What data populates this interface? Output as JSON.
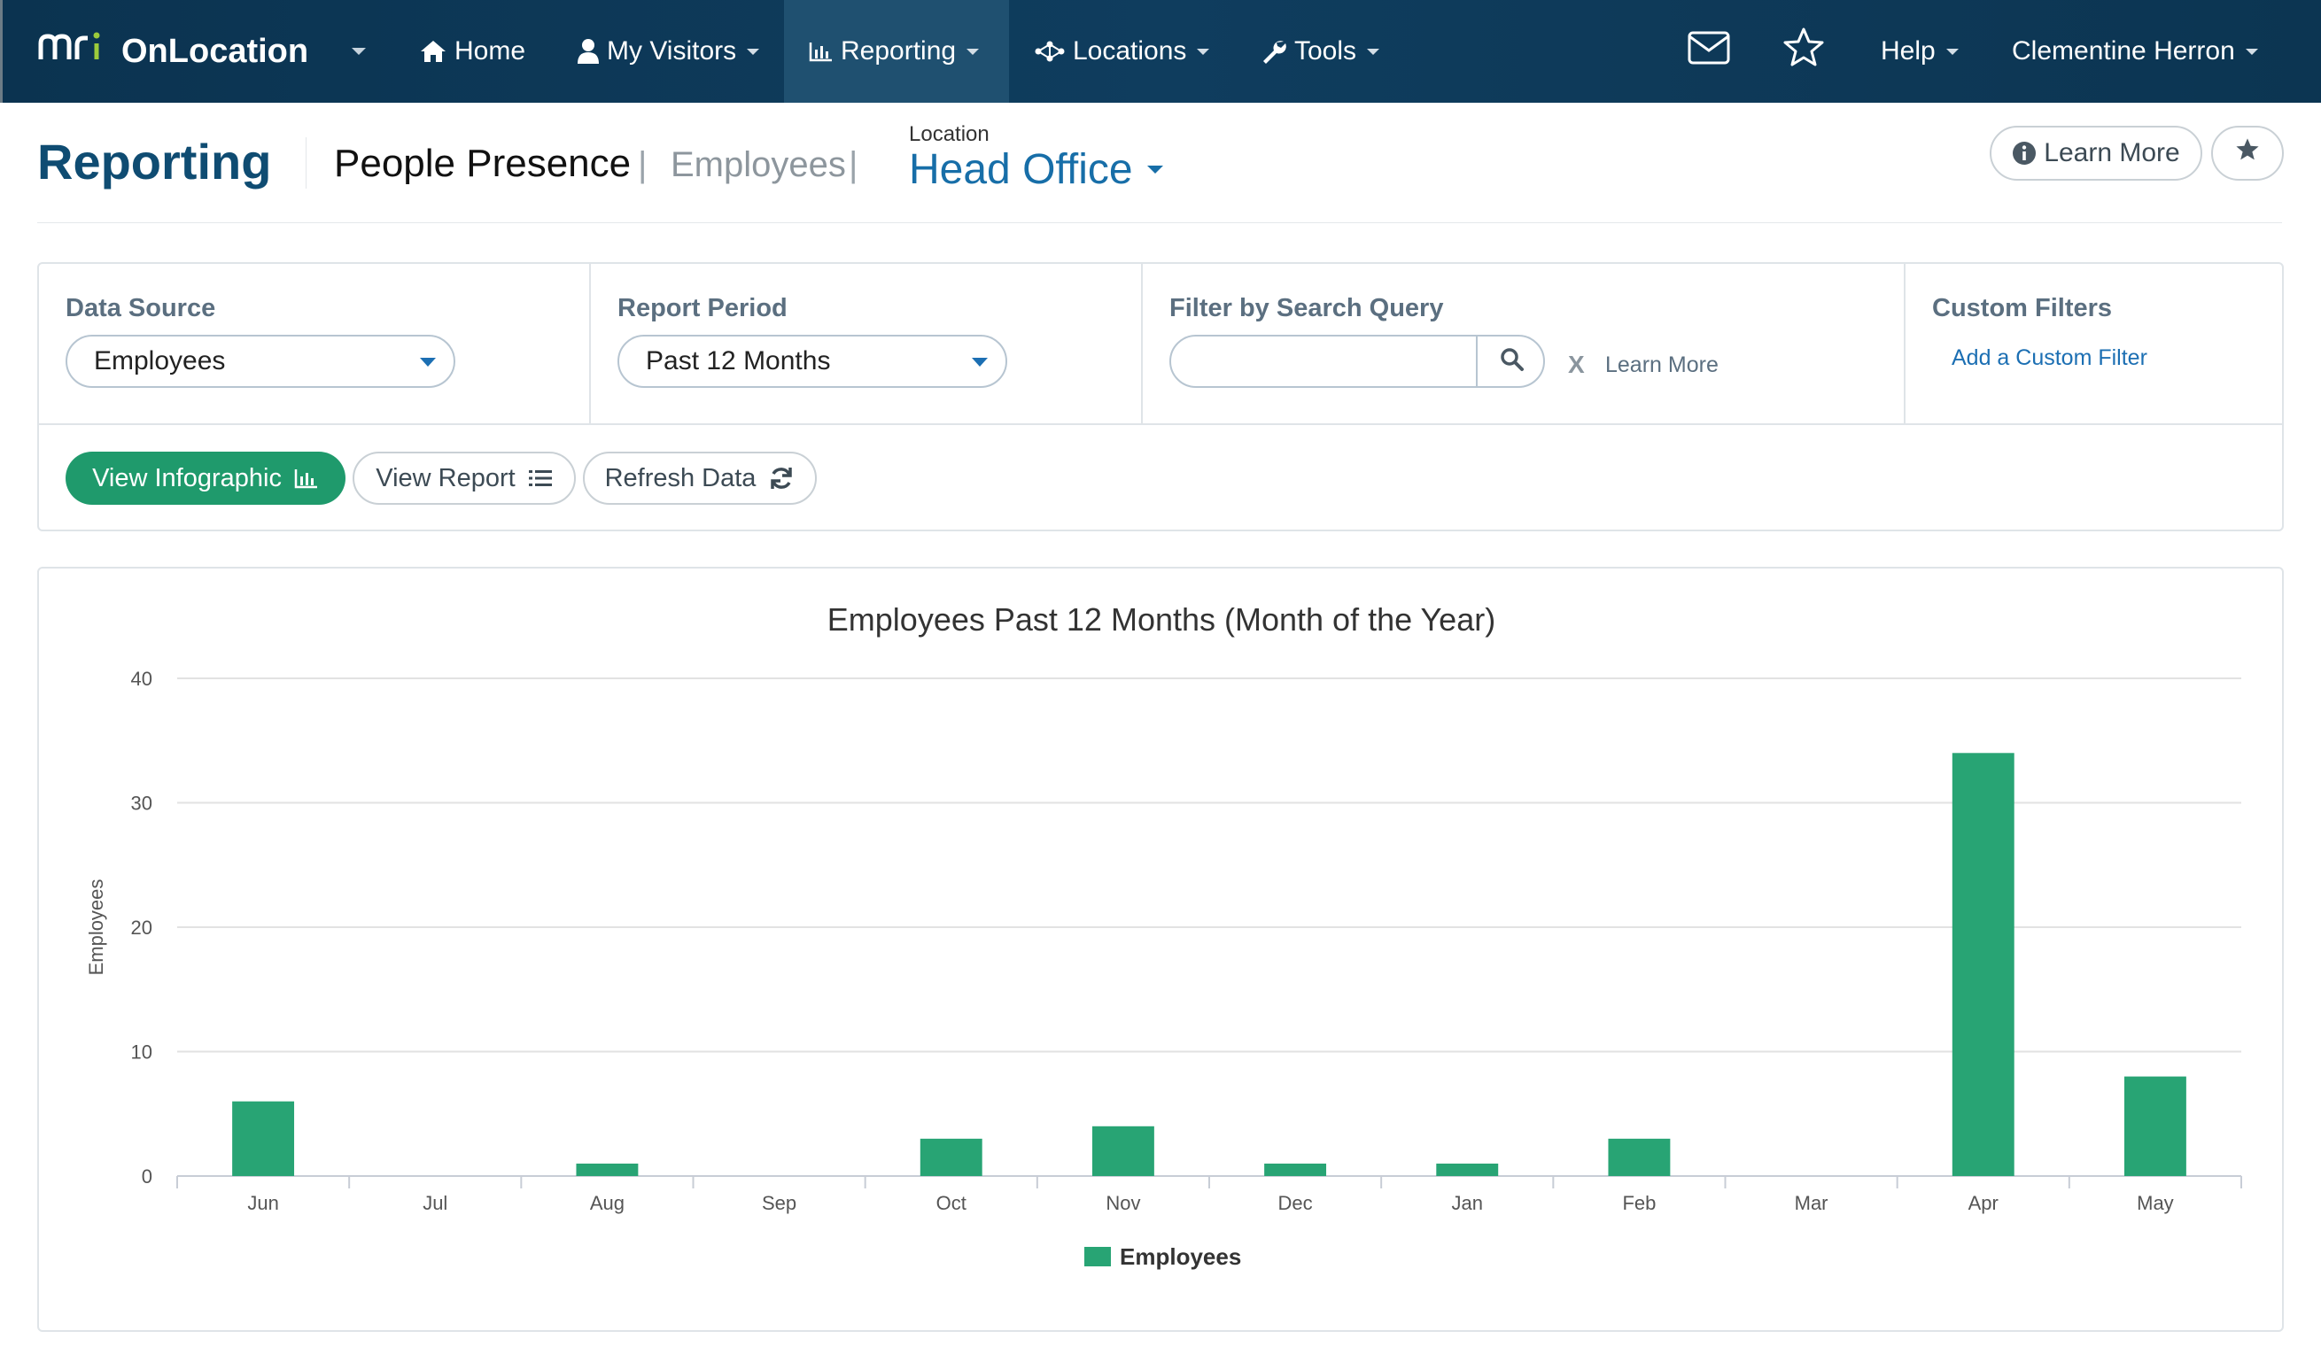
{
  "nav": {
    "brand_mri": "mri",
    "brand_app": "OnLocation",
    "home": "Home",
    "visitors": "My Visitors",
    "reporting": "Reporting",
    "locations": "Locations",
    "tools": "Tools",
    "help": "Help",
    "user": "Clementine Herron",
    "icons": [
      "home-icon",
      "user-icon",
      "bar-chart-icon",
      "network-icon",
      "wrench-icon",
      "mail-icon",
      "star-icon"
    ]
  },
  "header": {
    "title": "Reporting",
    "breadcrumb_main": "People Presence",
    "breadcrumb_sep": "|",
    "breadcrumb_sub": "Employees",
    "location_label": "Location",
    "location_value": "Head Office",
    "learn_more": "Learn More"
  },
  "filters": {
    "data_source_label": "Data Source",
    "data_source_value": "Employees",
    "report_period_label": "Report Period",
    "report_period_value": "Past 12 Months",
    "search_label": "Filter by Search Query",
    "search_value": "",
    "clear": "X",
    "learn_more": "Learn More",
    "custom_label": "Custom Filters",
    "custom_link": "Add a Custom Filter"
  },
  "actions": {
    "infographic": "View Infographic",
    "report": "View Report",
    "refresh": "Refresh Data"
  },
  "colors": {
    "nav_bg": "#0f3d5e",
    "brand_accent": "#9ccb3b",
    "primary_green": "#1f9a6c",
    "bar_green": "#28a474",
    "link_blue": "#1c6fb3",
    "title_blue": "#0f4c72"
  },
  "chart_data": {
    "type": "bar",
    "title": "Employees Past 12 Months (Month of the Year)",
    "xlabel": "",
    "ylabel": "Employees",
    "ylim": [
      0,
      40
    ],
    "yticks": [
      0,
      10,
      20,
      30,
      40
    ],
    "grid": true,
    "legend_position": "bottom-center",
    "categories": [
      "Jun",
      "Jul",
      "Aug",
      "Sep",
      "Oct",
      "Nov",
      "Dec",
      "Jan",
      "Feb",
      "Mar",
      "Apr",
      "May"
    ],
    "series": [
      {
        "name": "Employees",
        "color": "#28a474",
        "values": [
          6,
          0,
          1,
          0,
          3,
          4,
          1,
          1,
          3,
          0,
          34,
          8
        ]
      }
    ]
  }
}
